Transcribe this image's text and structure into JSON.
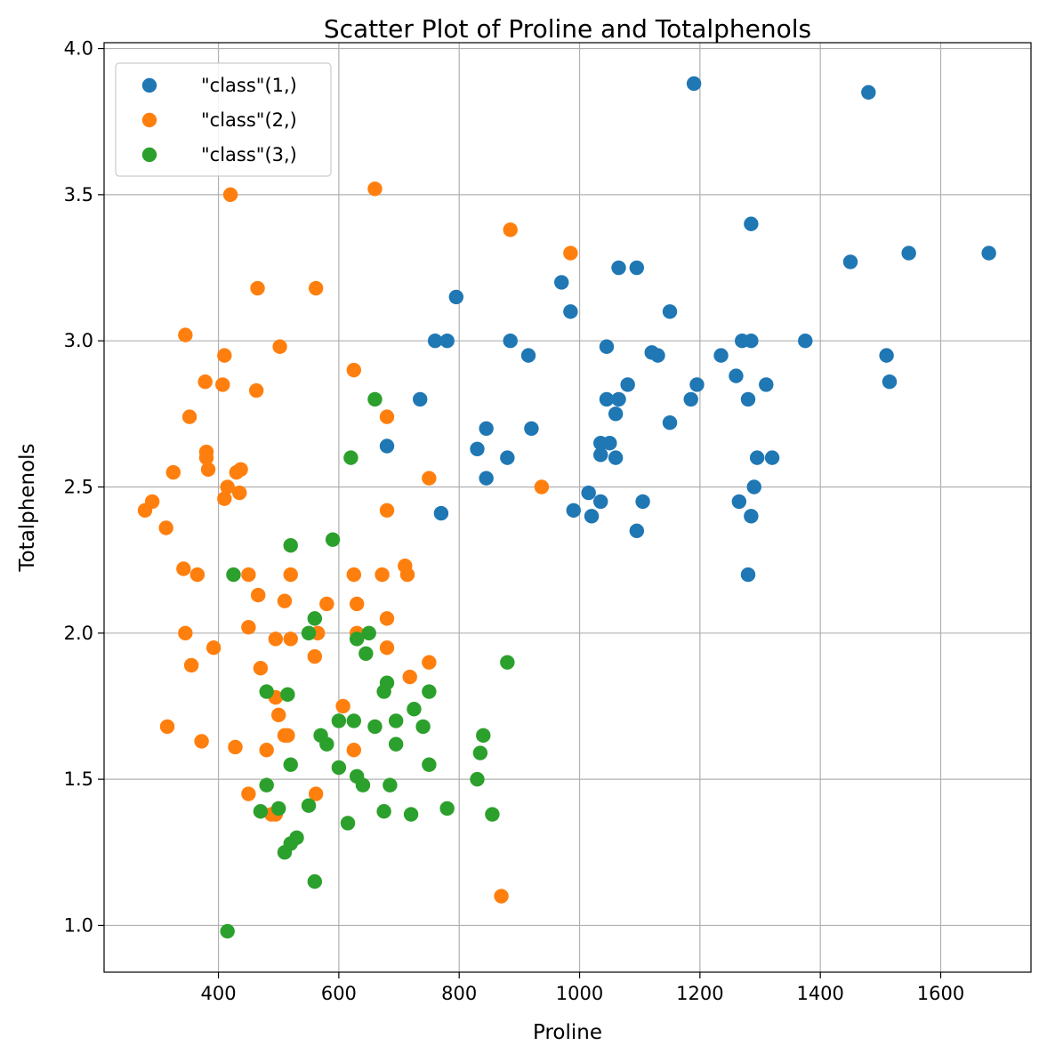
{
  "chart_data": {
    "type": "scatter",
    "title": "Scatter Plot of Proline and Totalphenols",
    "xlabel": "Proline",
    "ylabel": "Totalphenols",
    "xlim": [
      210,
      1750
    ],
    "ylim": [
      0.84,
      4.02
    ],
    "xticks": [
      400,
      600,
      800,
      1000,
      1200,
      1400,
      1600
    ],
    "yticks": [
      1.0,
      1.5,
      2.0,
      2.5,
      3.0,
      3.5,
      4.0
    ],
    "xtick_labels": [
      "400",
      "600",
      "800",
      "1000",
      "1200",
      "1400",
      "1600"
    ],
    "ytick_labels": [
      "1.0",
      "1.5",
      "2.0",
      "2.5",
      "3.0",
      "3.5",
      "4.0"
    ],
    "grid": true,
    "legend_position": "top-left",
    "series": [
      {
        "name": "\"class\"(1,)",
        "color": "#1f77b4",
        "points": [
          [
            1190,
            3.88
          ],
          [
            1480,
            3.85
          ],
          [
            1285,
            3.4
          ],
          [
            1450,
            3.27
          ],
          [
            1547,
            3.3
          ],
          [
            1680,
            3.3
          ],
          [
            1065,
            3.25
          ],
          [
            1095,
            3.25
          ],
          [
            970,
            3.2
          ],
          [
            795,
            3.15
          ],
          [
            985,
            3.1
          ],
          [
            1150,
            3.1
          ],
          [
            760,
            3.0
          ],
          [
            780,
            3.0
          ],
          [
            885,
            3.0
          ],
          [
            1270,
            3.0
          ],
          [
            1285,
            3.0
          ],
          [
            1375,
            3.0
          ],
          [
            915,
            2.95
          ],
          [
            1120,
            2.96
          ],
          [
            1130,
            2.95
          ],
          [
            1235,
            2.95
          ],
          [
            1510,
            2.95
          ],
          [
            1045,
            2.98
          ],
          [
            1080,
            2.85
          ],
          [
            1195,
            2.85
          ],
          [
            1310,
            2.85
          ],
          [
            1515,
            2.86
          ],
          [
            1260,
            2.88
          ],
          [
            735,
            2.8
          ],
          [
            1045,
            2.8
          ],
          [
            1065,
            2.8
          ],
          [
            1185,
            2.8
          ],
          [
            1280,
            2.8
          ],
          [
            1060,
            2.75
          ],
          [
            1150,
            2.72
          ],
          [
            845,
            2.7
          ],
          [
            920,
            2.7
          ],
          [
            1035,
            2.65
          ],
          [
            1050,
            2.65
          ],
          [
            830,
            2.63
          ],
          [
            1035,
            2.61
          ],
          [
            880,
            2.6
          ],
          [
            1060,
            2.6
          ],
          [
            1295,
            2.6
          ],
          [
            1320,
            2.6
          ],
          [
            680,
            2.64
          ],
          [
            845,
            2.53
          ],
          [
            1290,
            2.5
          ],
          [
            1015,
            2.48
          ],
          [
            990,
            2.42
          ],
          [
            1035,
            2.45
          ],
          [
            1105,
            2.45
          ],
          [
            1265,
            2.45
          ],
          [
            770,
            2.41
          ],
          [
            1020,
            2.4
          ],
          [
            1285,
            2.4
          ],
          [
            1095,
            2.35
          ],
          [
            1280,
            2.2
          ]
        ]
      },
      {
        "name": "\"class\"(2,)",
        "color": "#ff7f0e",
        "points": [
          [
            660,
            3.52
          ],
          [
            420,
            3.5
          ],
          [
            885,
            3.38
          ],
          [
            985,
            3.3
          ],
          [
            465,
            3.18
          ],
          [
            562,
            3.18
          ],
          [
            345,
            3.02
          ],
          [
            502,
            2.98
          ],
          [
            410,
            2.95
          ],
          [
            625,
            2.9
          ],
          [
            378,
            2.86
          ],
          [
            407,
            2.85
          ],
          [
            463,
            2.83
          ],
          [
            680,
            2.74
          ],
          [
            352,
            2.74
          ],
          [
            380,
            2.62
          ],
          [
            380,
            2.6
          ],
          [
            383,
            2.56
          ],
          [
            325,
            2.55
          ],
          [
            430,
            2.55
          ],
          [
            437,
            2.56
          ],
          [
            750,
            2.53
          ],
          [
            415,
            2.5
          ],
          [
            937,
            2.5
          ],
          [
            410,
            2.46
          ],
          [
            435,
            2.48
          ],
          [
            290,
            2.45
          ],
          [
            278,
            2.42
          ],
          [
            680,
            2.42
          ],
          [
            313,
            2.36
          ],
          [
            710,
            2.23
          ],
          [
            342,
            2.22
          ],
          [
            365,
            2.2
          ],
          [
            450,
            2.2
          ],
          [
            520,
            2.2
          ],
          [
            625,
            2.2
          ],
          [
            672,
            2.2
          ],
          [
            714,
            2.2
          ],
          [
            466,
            2.13
          ],
          [
            510,
            2.11
          ],
          [
            580,
            2.1
          ],
          [
            630,
            2.1
          ],
          [
            680,
            2.05
          ],
          [
            450,
            2.02
          ],
          [
            345,
            2.0
          ],
          [
            565,
            2.0
          ],
          [
            630,
            2.0
          ],
          [
            495,
            1.98
          ],
          [
            520,
            1.98
          ],
          [
            392,
            1.95
          ],
          [
            680,
            1.95
          ],
          [
            560,
            1.92
          ],
          [
            355,
            1.89
          ],
          [
            750,
            1.9
          ],
          [
            470,
            1.88
          ],
          [
            718,
            1.85
          ],
          [
            495,
            1.78
          ],
          [
            607,
            1.75
          ],
          [
            500,
            1.72
          ],
          [
            510,
            1.65
          ],
          [
            515,
            1.65
          ],
          [
            315,
            1.68
          ],
          [
            372,
            1.63
          ],
          [
            428,
            1.61
          ],
          [
            480,
            1.6
          ],
          [
            625,
            1.6
          ],
          [
            450,
            1.45
          ],
          [
            562,
            1.45
          ],
          [
            488,
            1.38
          ],
          [
            495,
            1.38
          ],
          [
            870,
            1.1
          ]
        ]
      },
      {
        "name": "\"class\"(3,)",
        "color": "#2ca02c",
        "points": [
          [
            660,
            2.8
          ],
          [
            620,
            2.6
          ],
          [
            590,
            2.32
          ],
          [
            520,
            2.3
          ],
          [
            425,
            2.2
          ],
          [
            560,
            2.05
          ],
          [
            550,
            2.0
          ],
          [
            650,
            2.0
          ],
          [
            630,
            1.98
          ],
          [
            645,
            1.93
          ],
          [
            880,
            1.9
          ],
          [
            680,
            1.83
          ],
          [
            480,
            1.8
          ],
          [
            675,
            1.8
          ],
          [
            750,
            1.8
          ],
          [
            515,
            1.79
          ],
          [
            725,
            1.74
          ],
          [
            600,
            1.7
          ],
          [
            625,
            1.7
          ],
          [
            695,
            1.7
          ],
          [
            660,
            1.68
          ],
          [
            740,
            1.68
          ],
          [
            570,
            1.65
          ],
          [
            840,
            1.65
          ],
          [
            580,
            1.62
          ],
          [
            695,
            1.62
          ],
          [
            835,
            1.59
          ],
          [
            520,
            1.55
          ],
          [
            600,
            1.54
          ],
          [
            750,
            1.55
          ],
          [
            630,
            1.51
          ],
          [
            830,
            1.5
          ],
          [
            480,
            1.48
          ],
          [
            640,
            1.48
          ],
          [
            685,
            1.48
          ],
          [
            550,
            1.41
          ],
          [
            470,
            1.39
          ],
          [
            500,
            1.4
          ],
          [
            675,
            1.39
          ],
          [
            720,
            1.38
          ],
          [
            780,
            1.4
          ],
          [
            855,
            1.38
          ],
          [
            615,
            1.35
          ],
          [
            530,
            1.3
          ],
          [
            520,
            1.28
          ],
          [
            510,
            1.25
          ],
          [
            560,
            1.15
          ],
          [
            415,
            0.98
          ]
        ]
      }
    ]
  }
}
